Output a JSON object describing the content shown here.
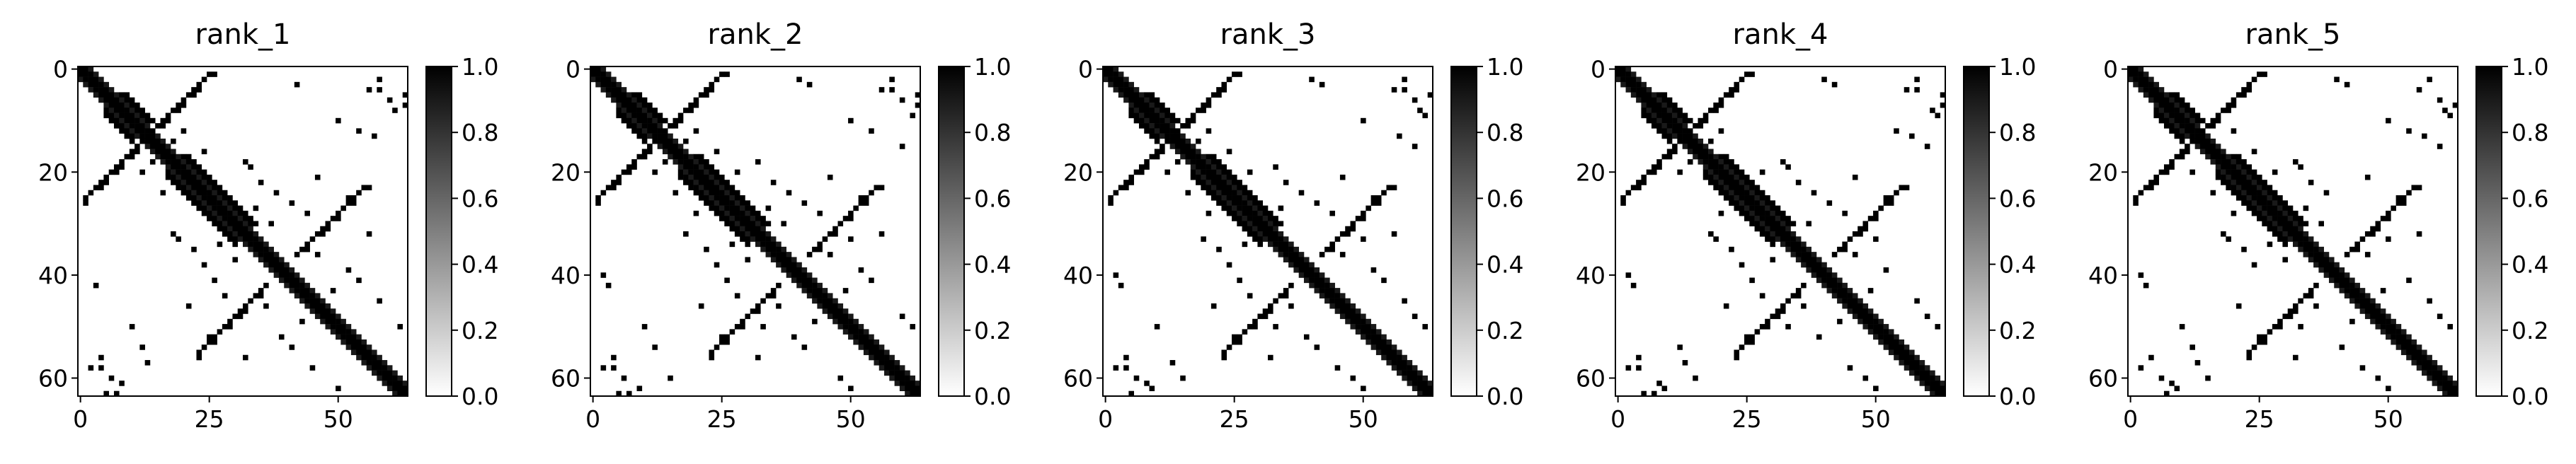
{
  "chart_data": [
    {
      "type": "heatmap",
      "title": "rank_1",
      "n": 64,
      "x_ticks": [
        "0",
        "25",
        "50"
      ],
      "y_ticks": [
        "0",
        "20",
        "40",
        "60"
      ],
      "cbar_ticks": [
        "0.0",
        "0.2",
        "0.4",
        "0.6",
        "0.8",
        "1.0"
      ],
      "vmin": 0.0,
      "vmax": 1.0,
      "colormap": "Greys"
    },
    {
      "type": "heatmap",
      "title": "rank_2",
      "n": 64,
      "x_ticks": [
        "0",
        "25",
        "50"
      ],
      "y_ticks": [
        "0",
        "20",
        "40",
        "60"
      ],
      "cbar_ticks": [
        "0.0",
        "0.2",
        "0.4",
        "0.6",
        "0.8",
        "1.0"
      ],
      "vmin": 0.0,
      "vmax": 1.0,
      "colormap": "Greys"
    },
    {
      "type": "heatmap",
      "title": "rank_3",
      "n": 64,
      "x_ticks": [
        "0",
        "25",
        "50"
      ],
      "y_ticks": [
        "0",
        "20",
        "40",
        "60"
      ],
      "cbar_ticks": [
        "0.0",
        "0.2",
        "0.4",
        "0.6",
        "0.8",
        "1.0"
      ],
      "vmin": 0.0,
      "vmax": 1.0,
      "colormap": "Greys"
    },
    {
      "type": "heatmap",
      "title": "rank_4",
      "n": 64,
      "x_ticks": [
        "0",
        "25",
        "50"
      ],
      "y_ticks": [
        "0",
        "20",
        "40",
        "60"
      ],
      "cbar_ticks": [
        "0.0",
        "0.2",
        "0.4",
        "0.6",
        "0.8",
        "1.0"
      ],
      "vmin": 0.0,
      "vmax": 1.0,
      "colormap": "Greys"
    },
    {
      "type": "heatmap",
      "title": "rank_5",
      "n": 64,
      "x_ticks": [
        "0",
        "25",
        "50"
      ],
      "y_ticks": [
        "0",
        "20",
        "40",
        "60"
      ],
      "cbar_ticks": [
        "0.0",
        "0.2",
        "0.4",
        "0.6",
        "0.8",
        "1.0"
      ],
      "vmin": 0.0,
      "vmax": 1.0,
      "colormap": "Greys"
    }
  ],
  "contact_pattern": {
    "main_diagonal_width": 1,
    "helix_blocks": [
      [
        5,
        10
      ],
      [
        17,
        30
      ]
    ],
    "anti_diagonal_bands": [
      {
        "i_start": 1,
        "j_start": 25,
        "length": 22
      },
      {
        "i_start": 23,
        "j_start": 55,
        "length": 14
      }
    ],
    "scattered_pairs": [
      [
        2,
        40
      ],
      [
        3,
        42
      ],
      [
        4,
        56
      ],
      [
        4,
        58
      ],
      [
        6,
        60
      ],
      [
        7,
        63
      ],
      [
        8,
        61
      ],
      [
        9,
        62
      ],
      [
        11,
        15
      ],
      [
        12,
        20
      ],
      [
        14,
        18
      ],
      [
        16,
        24
      ],
      [
        18,
        32
      ],
      [
        19,
        33
      ],
      [
        20,
        28
      ],
      [
        22,
        35
      ],
      [
        24,
        38
      ],
      [
        26,
        41
      ],
      [
        27,
        34
      ],
      [
        30,
        37
      ],
      [
        31,
        48
      ],
      [
        33,
        50
      ],
      [
        35,
        44
      ],
      [
        36,
        46
      ],
      [
        39,
        52
      ],
      [
        41,
        54
      ],
      [
        43,
        49
      ],
      [
        45,
        58
      ],
      [
        48,
        60
      ],
      [
        50,
        62
      ],
      [
        2,
        58
      ],
      [
        5,
        63
      ],
      [
        10,
        50
      ],
      [
        12,
        54
      ],
      [
        13,
        57
      ],
      [
        15,
        60
      ],
      [
        21,
        46
      ],
      [
        25,
        52
      ],
      [
        28,
        44
      ],
      [
        32,
        56
      ]
    ]
  }
}
